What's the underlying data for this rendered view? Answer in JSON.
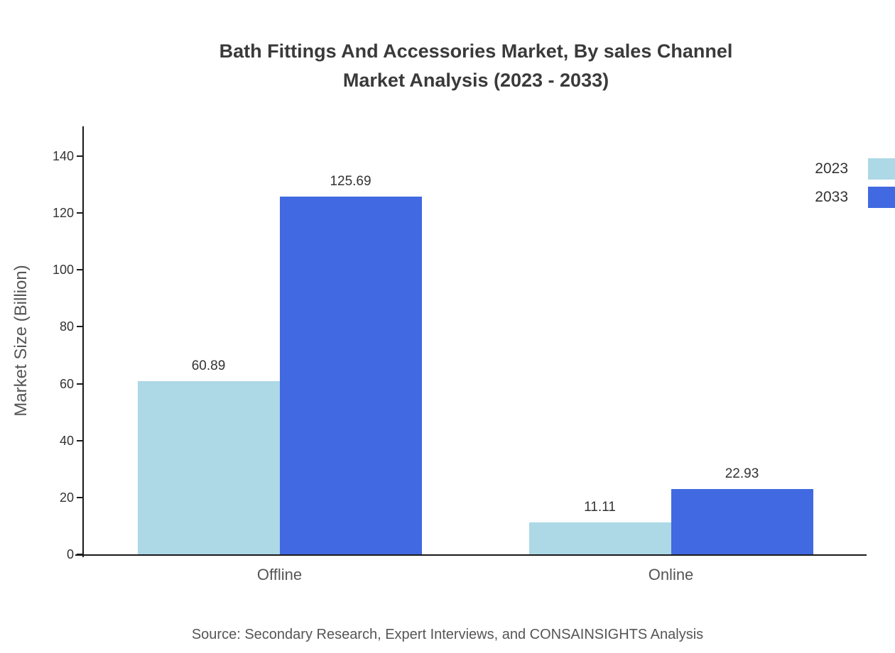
{
  "title": {
    "line1": "Bath Fittings And Accessories Market, By sales Channel",
    "line2": "Market Analysis (2023 - 2033)"
  },
  "source": "Source: Secondary Research, Expert Interviews, and CONSAINSIGHTS Analysis",
  "chart_data": {
    "type": "bar",
    "title": "Bath Fittings And Accessories Market, By sales Channel Market Analysis (2023 - 2033)",
    "categories": [
      "Offline",
      "Online"
    ],
    "series": [
      {
        "name": "2023",
        "color": "#ADD8E6",
        "values": [
          60.89,
          11.11
        ]
      },
      {
        "name": "2033",
        "color": "#4169E1",
        "values": [
          125.69,
          22.93
        ]
      }
    ],
    "value_labels": [
      [
        "60.89",
        "11.11"
      ],
      [
        "125.69",
        "22.93"
      ]
    ],
    "xlabel": "",
    "ylabel": "Market Size (Billion)",
    "ylim": [
      0,
      150
    ],
    "yticks": [
      0,
      20,
      40,
      60,
      80,
      100,
      120,
      140
    ],
    "grid": false,
    "legend_position": "top-right"
  }
}
